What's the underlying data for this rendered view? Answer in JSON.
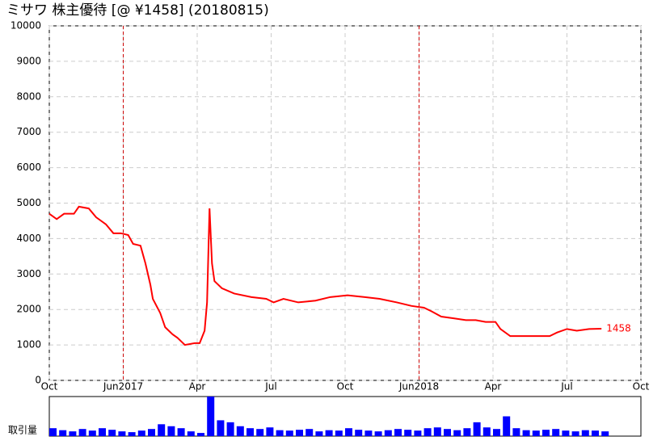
{
  "chart_data": [
    {
      "type": "line",
      "title": "ミサワ 株主優待  [@ ¥1458] (20180815)",
      "x": [
        0,
        0.3,
        0.6,
        1.0,
        1.2,
        1.6,
        1.9,
        2.3,
        2.6,
        2.9,
        3.2,
        3.4,
        3.7,
        3.9,
        4.1,
        4.2,
        4.5,
        4.7,
        5.0,
        5.2,
        5.5,
        5.9,
        6.1,
        6.3,
        6.4,
        6.5,
        6.6,
        6.7,
        7.0,
        7.5,
        8.2,
        8.8,
        9.1,
        9.5,
        10.1,
        10.8,
        11.4,
        12.1,
        12.8,
        13.4,
        14.1,
        14.7,
        15.2,
        15.5,
        15.9,
        16.4,
        16.9,
        17.3,
        17.7,
        18.1,
        18.3,
        18.7,
        19.1,
        19.8,
        20.3,
        20.6,
        21.0,
        21.4,
        21.9,
        22.4
      ],
      "series": [
        {
          "color": "#ff0000",
          "values": [
            4700,
            4550,
            4700,
            4700,
            4900,
            4850,
            4600,
            4400,
            4150,
            4150,
            4100,
            3850,
            3800,
            3300,
            2700,
            2300,
            1900,
            1500,
            1300,
            1200,
            1000,
            1050,
            1050,
            1400,
            2200,
            4850,
            3300,
            2800,
            2600,
            2450,
            2350,
            2300,
            2200,
            2300,
            2200,
            2250,
            2350,
            2400,
            2350,
            2300,
            2200,
            2100,
            2050,
            1950,
            1800,
            1750,
            1700,
            1700,
            1650,
            1650,
            1450,
            1250,
            1250,
            1250,
            1250,
            1350,
            1450,
            1400,
            1450,
            1458
          ]
        }
      ],
      "xlim": [
        0,
        24
      ],
      "xticks": [
        {
          "value": 0,
          "label": "Oct"
        },
        {
          "value": 3,
          "label": "Jun2017"
        },
        {
          "value": 6,
          "label": "Apr"
        },
        {
          "value": 9,
          "label": "Jul"
        },
        {
          "value": 12,
          "label": "Oct"
        },
        {
          "value": 15,
          "label": "Jun2018"
        },
        {
          "value": 18,
          "label": "Apr"
        },
        {
          "value": 21,
          "label": "Jul"
        },
        {
          "value": 24,
          "label": "Oct"
        }
      ],
      "ylim": [
        0,
        10000
      ],
      "yticks": [
        0,
        1000,
        2000,
        3000,
        4000,
        5000,
        6000,
        7000,
        8000,
        9000,
        10000
      ],
      "vlines": [
        3,
        15
      ],
      "vline_color": "#cc0000",
      "grid": true
    },
    {
      "type": "bar",
      "ylabel": "取引量",
      "color": "#0000ff",
      "xlim": [
        0,
        24
      ],
      "x": [
        0,
        0.4,
        0.8,
        1.2,
        1.6,
        2,
        2.4,
        2.8,
        3.2,
        3.6,
        4,
        4.4,
        4.8,
        5.2,
        5.6,
        6,
        6.4,
        6.8,
        7.2,
        7.6,
        8,
        8.4,
        8.8,
        9.2,
        9.6,
        10,
        10.4,
        10.8,
        11.2,
        11.6,
        12,
        12.4,
        12.8,
        13.2,
        13.6,
        14,
        14.4,
        14.8,
        15.2,
        15.6,
        16,
        16.4,
        16.8,
        17.2,
        17.6,
        18,
        18.4,
        18.8,
        19.2,
        19.6,
        20,
        20.4,
        20.8,
        21.2,
        21.6,
        22,
        22.4
      ],
      "values": [
        20,
        15,
        12,
        18,
        14,
        20,
        16,
        12,
        10,
        14,
        18,
        30,
        25,
        20,
        12,
        8,
        100,
        40,
        35,
        25,
        20,
        18,
        22,
        15,
        14,
        16,
        18,
        12,
        15,
        14,
        20,
        16,
        14,
        12,
        15,
        18,
        16,
        14,
        20,
        22,
        18,
        15,
        20,
        35,
        22,
        18,
        50,
        20,
        15,
        14,
        16,
        18,
        14,
        12,
        15,
        14,
        12
      ]
    }
  ]
}
